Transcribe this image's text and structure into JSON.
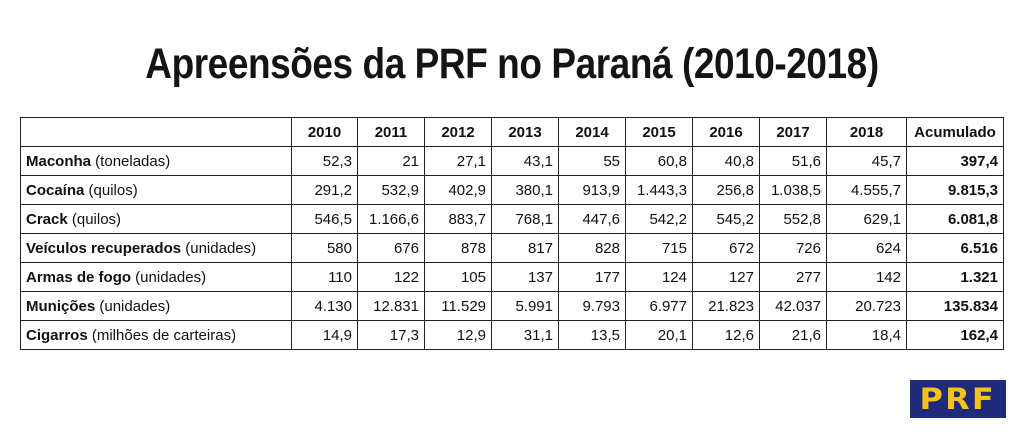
{
  "title": "Apreensões da PRF no Paraná (2010-2018)",
  "table": {
    "headers": [
      "",
      "2010",
      "2011",
      "2012",
      "2013",
      "2014",
      "2015",
      "2016",
      "2017",
      "2018",
      "Acumulado"
    ],
    "rows": [
      {
        "name": "Maconha",
        "unit": " (toneladas)",
        "values": [
          "52,3",
          "21",
          "27,1",
          "43,1",
          "55",
          "60,8",
          "40,8",
          "51,6",
          "45,7"
        ],
        "total": "397,4"
      },
      {
        "name": "Cocaína",
        "unit": " (quilos)",
        "values": [
          "291,2",
          "532,9",
          "402,9",
          "380,1",
          "913,9",
          "1.443,3",
          "256,8",
          "1.038,5",
          "4.555,7"
        ],
        "total": "9.815,3"
      },
      {
        "name": "Crack",
        "unit": " (quilos)",
        "values": [
          "546,5",
          "1.166,6",
          "883,7",
          "768,1",
          "447,6",
          "542,2",
          "545,2",
          "552,8",
          "629,1"
        ],
        "total": "6.081,8"
      },
      {
        "name": "Veículos recuperados",
        "unit": " (unidades)",
        "values": [
          "580",
          "676",
          "878",
          "817",
          "828",
          "715",
          "672",
          "726",
          "624"
        ],
        "total": "6.516"
      },
      {
        "name": "Armas de fogo",
        "unit": " (unidades)",
        "values": [
          "110",
          "122",
          "105",
          "137",
          "177",
          "124",
          "127",
          "277",
          "142"
        ],
        "total": "1.321"
      },
      {
        "name": "Munições",
        "unit": " (unidades)",
        "values": [
          "4.130",
          "12.831",
          "11.529",
          "5.991",
          "9.793",
          "6.977",
          "21.823",
          "42.037",
          "20.723"
        ],
        "total": "135.834"
      },
      {
        "name": "Cigarros",
        "unit": " (milhões de carteiras)",
        "values": [
          "14,9",
          "17,3",
          "12,9",
          "31,1",
          "13,5",
          "20,1",
          "12,6",
          "21,6",
          "18,4"
        ],
        "total": "162,4"
      }
    ]
  },
  "logo": {
    "text": "PRF",
    "background": "#1f2a7a",
    "color": "#f5c21a"
  }
}
